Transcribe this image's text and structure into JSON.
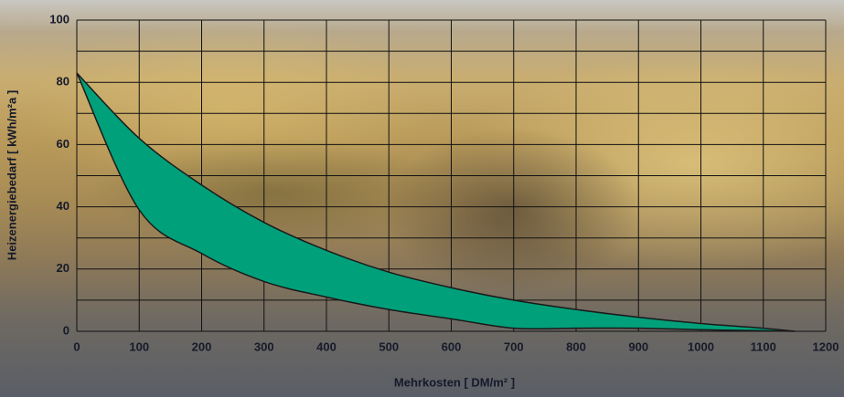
{
  "chart_data": {
    "type": "band",
    "xlabel": "Mehrkosten  [ DM/m² ]",
    "ylabel": "Heizenergiebedarf  [ kWh/m²a ]",
    "x": [
      0,
      100,
      200,
      300,
      400,
      500,
      600,
      700,
      800,
      900,
      1000,
      1100,
      1150
    ],
    "upper": [
      83,
      62,
      47,
      35,
      26,
      19,
      14,
      10,
      7,
      4.5,
      2.5,
      1,
      0
    ],
    "lower": [
      83,
      39,
      25,
      16,
      11,
      7,
      4,
      1,
      1,
      1,
      0.5,
      0.2,
      0
    ],
    "color": "#00a07a",
    "line_color": "#1a1a1a",
    "xlim": [
      0,
      1200
    ],
    "xticks": [
      0,
      100,
      200,
      300,
      400,
      500,
      600,
      700,
      800,
      900,
      1000,
      1100,
      1200
    ],
    "ylim": [
      0,
      100
    ],
    "yticks": [
      0,
      20,
      40,
      60,
      80,
      100
    ],
    "y_minor_grid": [
      10,
      30,
      50,
      70,
      90
    ],
    "grid": true
  }
}
